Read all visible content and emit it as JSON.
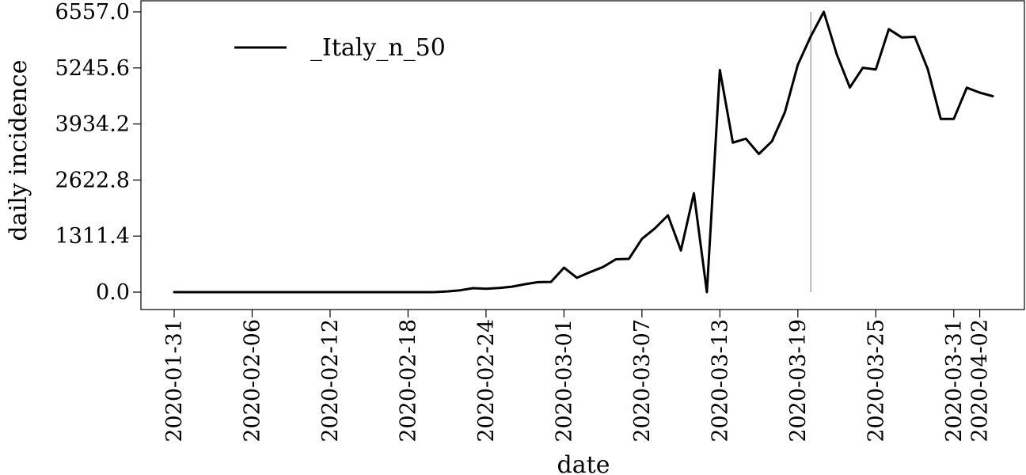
{
  "chart_data": {
    "type": "line",
    "xlabel": "date",
    "ylabel": "daily incidence",
    "ylim": [
      0,
      6557.0
    ],
    "xlim": [
      "2020-01-31",
      "2020-04-03"
    ],
    "yticks": [
      "0.0",
      "1311.4",
      "2622.8",
      "3934.2",
      "5245.6",
      "6557.0"
    ],
    "xticks": [
      "2020-01-31",
      "2020-02-06",
      "2020-02-12",
      "2020-02-18",
      "2020-02-24",
      "2020-03-01",
      "2020-03-07",
      "2020-03-13",
      "2020-03-19",
      "2020-03-25",
      "2020-03-31",
      "2020-04-02"
    ],
    "legend": {
      "position": "top-left"
    },
    "vline": {
      "x": "2020-03-20",
      "color": "#bbbbbb"
    },
    "series": [
      {
        "name": "_Italy_n_50",
        "color": "#000000",
        "x": [
          "2020-01-31",
          "2020-02-01",
          "2020-02-02",
          "2020-02-03",
          "2020-02-04",
          "2020-02-05",
          "2020-02-06",
          "2020-02-07",
          "2020-02-08",
          "2020-02-09",
          "2020-02-10",
          "2020-02-11",
          "2020-02-12",
          "2020-02-13",
          "2020-02-14",
          "2020-02-15",
          "2020-02-16",
          "2020-02-17",
          "2020-02-18",
          "2020-02-19",
          "2020-02-20",
          "2020-02-21",
          "2020-02-22",
          "2020-02-23",
          "2020-02-24",
          "2020-02-25",
          "2020-02-26",
          "2020-02-27",
          "2020-02-28",
          "2020-02-29",
          "2020-03-01",
          "2020-03-02",
          "2020-03-03",
          "2020-03-04",
          "2020-03-05",
          "2020-03-06",
          "2020-03-07",
          "2020-03-08",
          "2020-03-09",
          "2020-03-10",
          "2020-03-11",
          "2020-03-12",
          "2020-03-13",
          "2020-03-14",
          "2020-03-15",
          "2020-03-16",
          "2020-03-17",
          "2020-03-18",
          "2020-03-19",
          "2020-03-20",
          "2020-03-21",
          "2020-03-22",
          "2020-03-23",
          "2020-03-24",
          "2020-03-25",
          "2020-03-26",
          "2020-03-27",
          "2020-03-28",
          "2020-03-29",
          "2020-03-30",
          "2020-03-31",
          "2020-04-01",
          "2020-04-02",
          "2020-04-03"
        ],
        "values": [
          0,
          0,
          0,
          0,
          0,
          0,
          0,
          0,
          0,
          0,
          0,
          0,
          0,
          0,
          0,
          0,
          0,
          0,
          0,
          0,
          0,
          17,
          42,
          93,
          78,
          97,
          128,
          185,
          234,
          239,
          573,
          335,
          466,
          587,
          769,
          778,
          1247,
          1492,
          1797,
          977,
          2313,
          0,
          5198,
          3497,
          3590,
          3233,
          3526,
          4207,
          5322,
          5986,
          6557,
          5560,
          4789,
          5249,
          5210,
          6153,
          5959,
          5974,
          5217,
          4050,
          4053,
          4782,
          4668,
          4585
        ]
      }
    ]
  }
}
